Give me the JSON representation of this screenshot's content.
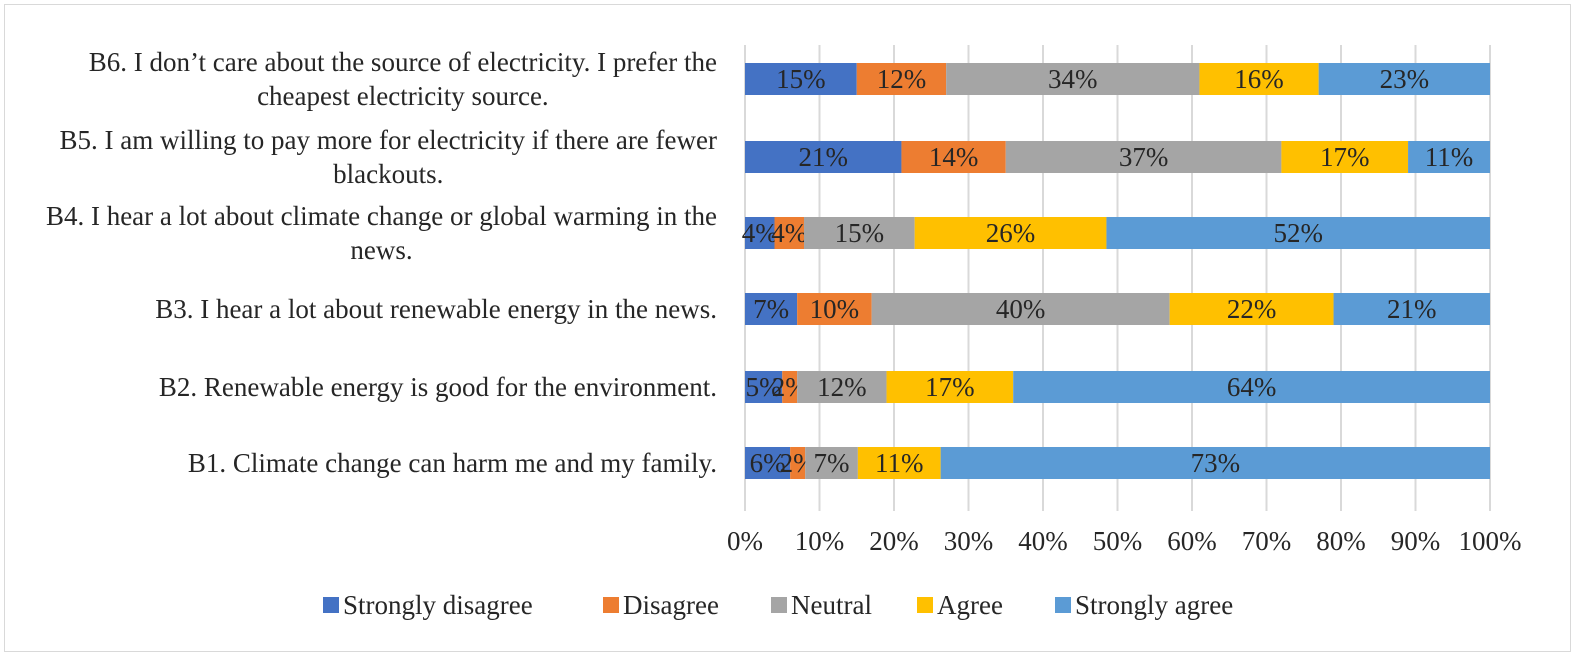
{
  "chart_data": {
    "type": "bar",
    "orientation": "horizontal",
    "stacked": "percent",
    "categories": [
      "B1. Climate change can harm me and my family.",
      "B2. Renewable energy is good for the environment.",
      "B3. I hear a lot about renewable energy in the news.",
      "B4. I hear a lot about climate change or global warming in the news.",
      "B5. I am willing to pay more for electricity if there are fewer blackouts.",
      "B6. I don’t care about the source of electricity. I prefer the cheapest electricity source."
    ],
    "series": [
      {
        "name": "Strongly disagree",
        "color": "#4472c4",
        "values": [
          6,
          5,
          7,
          4,
          21,
          15
        ],
        "labels": [
          "6%",
          "5%",
          "7%",
          "4%",
          "21%",
          "15%"
        ]
      },
      {
        "name": "Disagree",
        "color": "#ed7d31",
        "values": [
          2,
          2,
          10,
          4,
          14,
          12
        ],
        "labels": [
          "2%",
          "2%",
          "10%",
          "4%",
          "14%",
          "12%"
        ]
      },
      {
        "name": "Neutral",
        "color": "#a5a5a5",
        "values": [
          7,
          12,
          40,
          15,
          37,
          34
        ],
        "labels": [
          "7%",
          "12%",
          "40%",
          "15%",
          "37%",
          "34%"
        ]
      },
      {
        "name": "Agree",
        "color": "#ffc000",
        "values": [
          11,
          17,
          22,
          26,
          17,
          16
        ],
        "labels": [
          "11%",
          "17%",
          "22%",
          "26%",
          "17%",
          "16%"
        ]
      },
      {
        "name": "Strongly agree",
        "color": "#5b9bd5",
        "values": [
          73,
          64,
          21,
          52,
          11,
          23
        ],
        "labels": [
          "73%",
          "64%",
          "21%",
          "52%",
          "11%",
          "23%"
        ]
      }
    ],
    "xlim": [
      0,
      100
    ],
    "x_ticks": [
      "0%",
      "10%",
      "20%",
      "30%",
      "40%",
      "50%",
      "60%",
      "70%",
      "80%",
      "90%",
      "100%"
    ],
    "grid": true,
    "legend": "bottom"
  }
}
